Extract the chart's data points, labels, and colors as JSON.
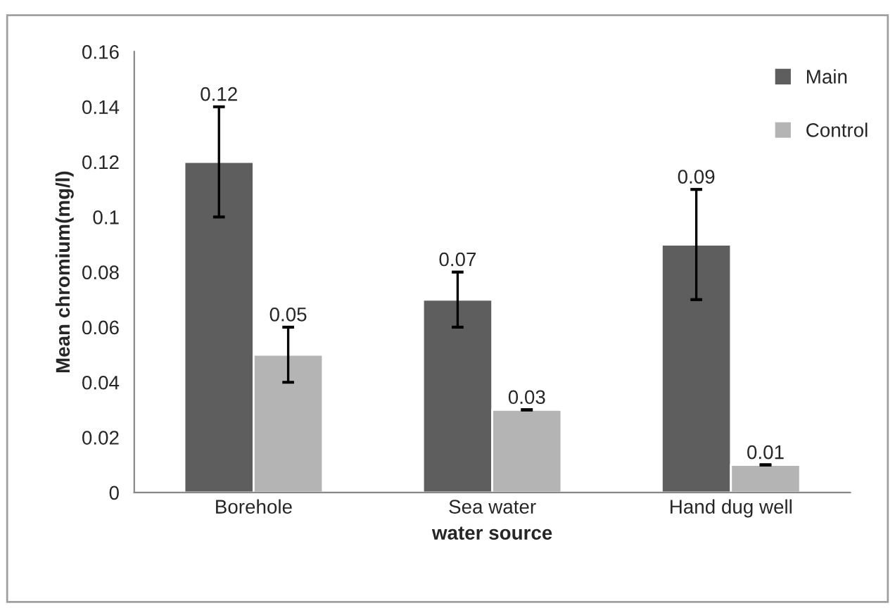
{
  "chart_data": {
    "type": "bar",
    "xlabel": "water source",
    "ylabel": "Mean chromium(mg/l)",
    "categories": [
      "Borehole",
      "Sea water",
      "Hand dug well"
    ],
    "series": [
      {
        "name": "Main",
        "color": "#5e5e5e",
        "values": [
          0.12,
          0.07,
          0.09
        ],
        "errors": [
          0.02,
          0.01,
          0.02
        ]
      },
      {
        "name": "Control",
        "color": "#b4b4b4",
        "values": [
          0.05,
          0.03,
          0.01
        ],
        "errors": [
          0.01,
          0,
          0
        ]
      }
    ],
    "ylim": [
      0,
      0.16
    ],
    "yticks": [
      0,
      0.02,
      0.04,
      0.06,
      0.08,
      0.1,
      0.12,
      0.14,
      0.16
    ],
    "data_labels": true,
    "grid": false,
    "legend": "top right"
  }
}
